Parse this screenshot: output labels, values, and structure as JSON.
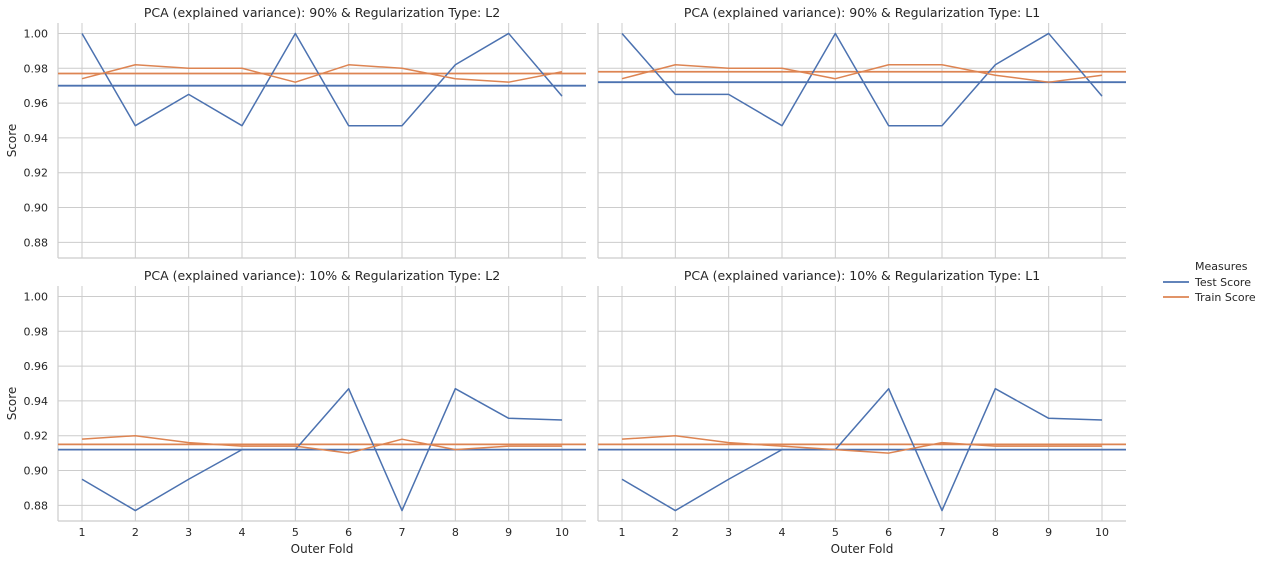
{
  "chart_data": {
    "type": "line",
    "x": [
      1,
      2,
      3,
      4,
      5,
      6,
      7,
      8,
      9,
      10
    ],
    "xlabel": "Outer Fold",
    "ylabel": "Score",
    "ylim": [
      0.871,
      1.006
    ],
    "yticks": [
      "0.88",
      "0.90",
      "0.92",
      "0.94",
      "0.96",
      "0.98",
      "1.00"
    ],
    "ytick_values": [
      0.88,
      0.9,
      0.92,
      0.94,
      0.96,
      0.98,
      1.0
    ],
    "xticks": [
      "1",
      "2",
      "3",
      "4",
      "5",
      "6",
      "7",
      "8",
      "9",
      "10"
    ],
    "grid": true,
    "legend": {
      "title": "Measures",
      "placement": "right-center",
      "entries": [
        {
          "name": "Test Score",
          "color": "#4c72b0"
        },
        {
          "name": "Train Score",
          "color": "#dd8452"
        }
      ]
    },
    "panels": [
      {
        "title": "PCA (explained variance): 90% & Regularization Type: L2",
        "series": [
          {
            "name": "Test Score",
            "values": [
              1.0,
              0.947,
              0.965,
              0.947,
              1.0,
              0.947,
              0.947,
              0.982,
              1.0,
              0.964
            ],
            "mean": 0.97
          },
          {
            "name": "Train Score",
            "values": [
              0.974,
              0.982,
              0.98,
              0.98,
              0.972,
              0.982,
              0.98,
              0.974,
              0.972,
              0.978
            ],
            "mean": 0.977
          }
        ]
      },
      {
        "title": "PCA (explained variance): 90% & Regularization Type: L1",
        "series": [
          {
            "name": "Test Score",
            "values": [
              1.0,
              0.965,
              0.965,
              0.947,
              1.0,
              0.947,
              0.947,
              0.982,
              1.0,
              0.964
            ],
            "mean": 0.972
          },
          {
            "name": "Train Score",
            "values": [
              0.974,
              0.982,
              0.98,
              0.98,
              0.974,
              0.982,
              0.982,
              0.976,
              0.972,
              0.976
            ],
            "mean": 0.978
          }
        ]
      },
      {
        "title": "PCA (explained variance): 10% & Regularization Type: L2",
        "series": [
          {
            "name": "Test Score",
            "values": [
              0.895,
              0.877,
              0.895,
              0.912,
              0.912,
              0.947,
              0.877,
              0.947,
              0.93,
              0.929
            ],
            "mean": 0.912
          },
          {
            "name": "Train Score",
            "values": [
              0.918,
              0.92,
              0.916,
              0.914,
              0.914,
              0.91,
              0.918,
              0.912,
              0.914,
              0.914
            ],
            "mean": 0.915
          }
        ]
      },
      {
        "title": "PCA (explained variance): 10% & Regularization Type: L1",
        "series": [
          {
            "name": "Test Score",
            "values": [
              0.895,
              0.877,
              0.895,
              0.912,
              0.912,
              0.947,
              0.877,
              0.947,
              0.93,
              0.929
            ],
            "mean": 0.912
          },
          {
            "name": "Train Score",
            "values": [
              0.918,
              0.92,
              0.916,
              0.914,
              0.912,
              0.91,
              0.916,
              0.914,
              0.914,
              0.914
            ],
            "mean": 0.915
          }
        ]
      }
    ]
  }
}
